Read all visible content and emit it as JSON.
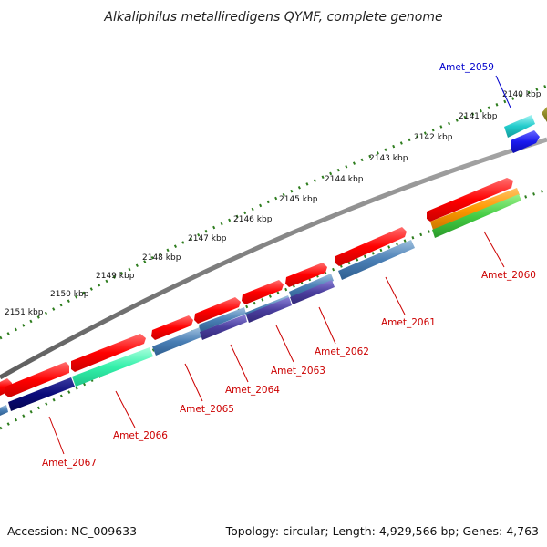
{
  "title": "Alkaliphilus metalliredigens QYMF, complete genome",
  "footer": {
    "accession": "Accession: NC_009633",
    "summary": "Topology: circular; Length: 4,929,566 bp; Genes: 4,763"
  },
  "colors": {
    "backbone": "#808080",
    "dots": "#2e7d1e",
    "label_forward": "#cc0000",
    "label_reverse": "#0000cc"
  },
  "ticks": [
    "2151 kbp",
    "2150 kbp",
    "2149 kbp",
    "2148 kbp",
    "2147 kbp",
    "2146 kbp",
    "2145 kbp",
    "2144 kbp",
    "2143 kbp",
    "2142 kbp",
    "2141 kbp",
    "2140 kbp"
  ],
  "genes": [
    {
      "id": "Amet_2059",
      "color": "#1a0ccc"
    },
    {
      "id": "Amet_2060",
      "color": "#cc0000"
    },
    {
      "id": "Amet_2061",
      "color": "#cc0000"
    },
    {
      "id": "Amet_2062",
      "color": "#cc0000"
    },
    {
      "id": "Amet_2063",
      "color": "#cc0000"
    },
    {
      "id": "Amet_2064",
      "color": "#cc0000"
    },
    {
      "id": "Amet_2065",
      "color": "#cc0000"
    },
    {
      "id": "Amet_2066",
      "color": "#cc0000"
    },
    {
      "id": "Amet_2067",
      "color": "#cc0000"
    }
  ]
}
